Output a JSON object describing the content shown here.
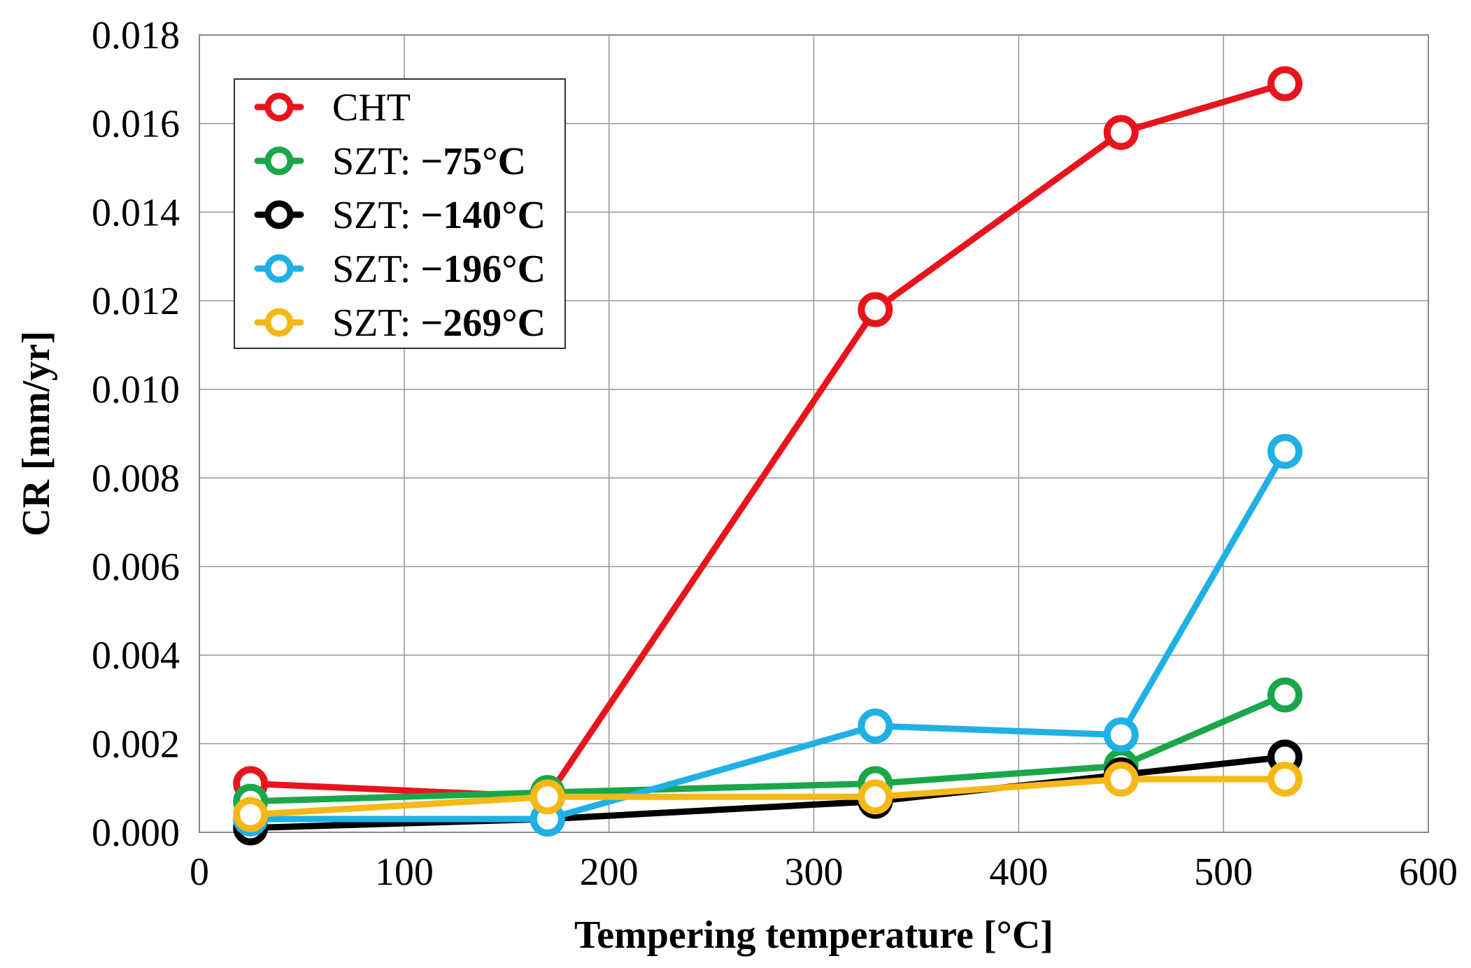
{
  "chart_data": {
    "type": "line",
    "title": "",
    "xlabel": "Tempering temperature [°C]",
    "ylabel": "CR [mm/yr]",
    "xlim": [
      0,
      600
    ],
    "ylim": [
      0.0,
      0.018
    ],
    "x_ticks": [
      "0",
      "100",
      "200",
      "300",
      "400",
      "500",
      "600"
    ],
    "y_ticks": [
      "0.000",
      "0.002",
      "0.004",
      "0.006",
      "0.008",
      "0.010",
      "0.012",
      "0.014",
      "0.016",
      "0.018"
    ],
    "grid": true,
    "legend_position": "top-left",
    "x": [
      25,
      170,
      330,
      450,
      530
    ],
    "series": [
      {
        "name": "CHT",
        "label_prefix": "CHT",
        "label_temp": "",
        "color": "#e8141c",
        "values": [
          0.0011,
          0.0008,
          0.0118,
          0.0158,
          0.0169
        ]
      },
      {
        "name": "SZT: −75°C",
        "label_prefix": "SZT: ",
        "label_temp": "−75°C",
        "color": "#1aa64a",
        "values": [
          0.0007,
          0.0009,
          0.0011,
          0.0015,
          0.0031
        ]
      },
      {
        "name": "SZT: −140°C",
        "label_prefix": "SZT: ",
        "label_temp": "−140°C",
        "color": "#000000",
        "values": [
          0.0001,
          0.0003,
          0.0007,
          0.0013,
          0.0017
        ]
      },
      {
        "name": "SZT: −196°C",
        "label_prefix": "SZT: ",
        "label_temp": "−196°C",
        "color": "#1fb0e6",
        "values": [
          0.0003,
          0.0003,
          0.0024,
          0.0022,
          0.0086
        ]
      },
      {
        "name": "SZT: −269°C",
        "label_prefix": "SZT: ",
        "label_temp": "−269°C",
        "color": "#f5b816",
        "values": [
          0.0004,
          0.0008,
          0.0008,
          0.0012,
          0.0012
        ]
      }
    ]
  }
}
